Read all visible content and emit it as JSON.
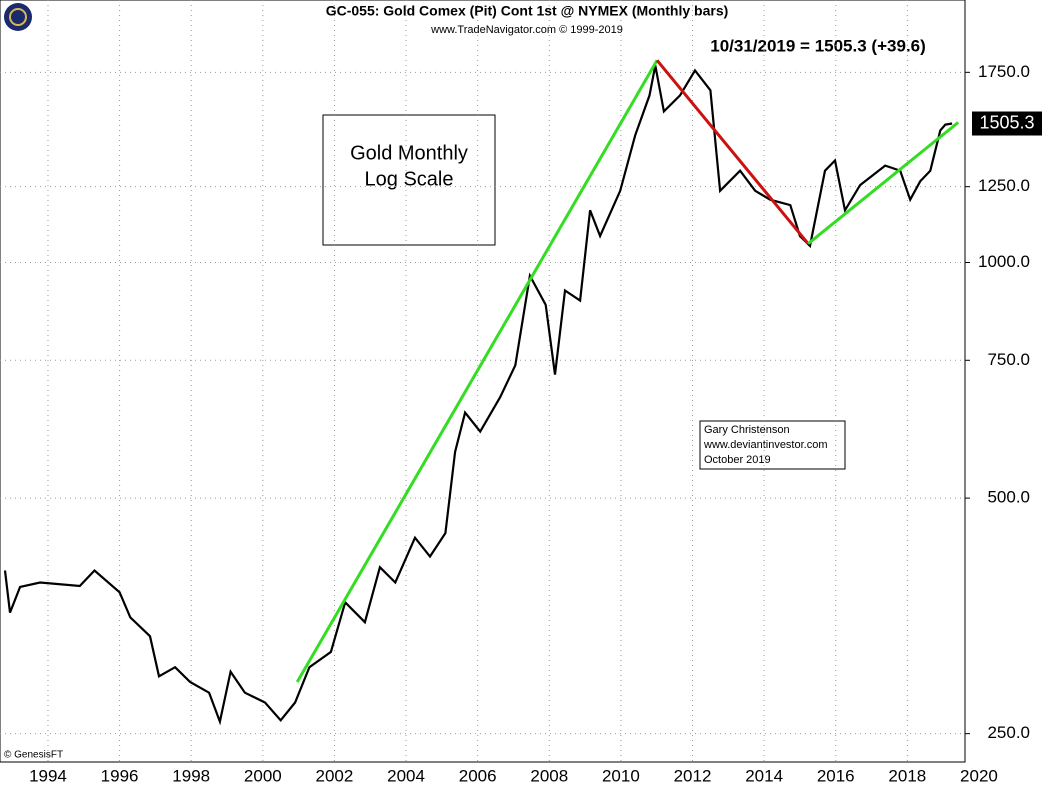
{
  "chart_data": {
    "type": "line",
    "title": "GC-055:  Gold Comex (Pit) Cont 1st @ NYMEX  (Monthly bars)",
    "subtitle": "www.TradeNavigator.com © 1999-2019",
    "headline": "10/31/2019 = 1505.3 (+39.6)",
    "last_price_label": "1505.3",
    "box_text": [
      "Gold Monthly",
      "Log Scale"
    ],
    "credit": [
      "Gary Christenson",
      "www.deviantinvestor.com",
      "October 2019"
    ],
    "copyright": "© GenesisFT",
    "log_scale": true,
    "grid": true,
    "color": "#000000",
    "x": [
      1992.8,
      1992.94,
      1993.22,
      1993.78,
      1994.89,
      1995.3,
      1996.0,
      1996.3,
      1996.85,
      1997.1,
      1997.55,
      1997.97,
      1998.5,
      1998.8,
      1999.1,
      1999.5,
      2000.06,
      2000.5,
      2000.9,
      2001.3,
      2001.9,
      2002.3,
      2002.85,
      2003.27,
      2003.7,
      2004.25,
      2004.67,
      2005.1,
      2005.37,
      2005.65,
      2006.07,
      2006.63,
      2007.05,
      2007.46,
      2007.9,
      2008.16,
      2008.44,
      2008.86,
      2009.14,
      2009.42,
      2009.98,
      2010.4,
      2010.8,
      2010.96,
      2011.2,
      2011.65,
      2012.07,
      2012.5,
      2012.77,
      2013.33,
      2013.75,
      2014.17,
      2014.73,
      2015.0,
      2015.28,
      2015.7,
      2015.98,
      2016.26,
      2016.68,
      2017.38,
      2017.8,
      2018.08,
      2018.36,
      2018.64,
      2018.92,
      2019.06,
      2019.25
    ],
    "values": [
      404,
      357,
      385,
      390,
      386,
      404,
      379,
      352,
      333,
      296,
      304,
      291,
      282,
      259,
      300,
      282,
      274,
      260,
      274,
      304,
      318,
      368,
      347,
      408,
      390,
      445,
      421,
      451,
      573,
      643,
      608,
      673,
      739,
      962,
      883,
      719,
      921,
      894,
      1166,
      1081,
      1235,
      1454,
      1635,
      1786,
      1560,
      1635,
      1760,
      1660,
      1235,
      1310,
      1235,
      1203,
      1184,
      1081,
      1050,
      1310,
      1350,
      1166,
      1256,
      1330,
      1310,
      1203,
      1270,
      1310,
      1475,
      1500,
      1505.3
    ],
    "trendlines": [
      {
        "color": "#33dd22",
        "x": [
          2000.96,
          2011.01
        ],
        "values": [
          291,
          1813
        ]
      },
      {
        "color": "#cc1111",
        "x": [
          2011.01,
          2015.23
        ],
        "values": [
          1813,
          1057
        ]
      },
      {
        "color": "#33dd22",
        "x": [
          2015.23,
          2019.42
        ],
        "values": [
          1057,
          1510
        ]
      }
    ],
    "xlim": [
      1992.66,
      2019.61
    ],
    "xticks": [
      1994,
      1996,
      1998,
      2000,
      2002,
      2004,
      2006,
      2008,
      2010,
      2012,
      2014,
      2016,
      2018,
      2020
    ],
    "ylim": [
      230,
      2165
    ],
    "yticks": [
      {
        "value": 250,
        "label": "250.0"
      },
      {
        "value": 500,
        "label": "500.0"
      },
      {
        "value": 750,
        "label": "750.0"
      },
      {
        "value": 1000,
        "label": "1000.0"
      },
      {
        "value": 1250,
        "label": "1250.0"
      },
      {
        "value": 1750,
        "label": "1750.0"
      }
    ]
  }
}
